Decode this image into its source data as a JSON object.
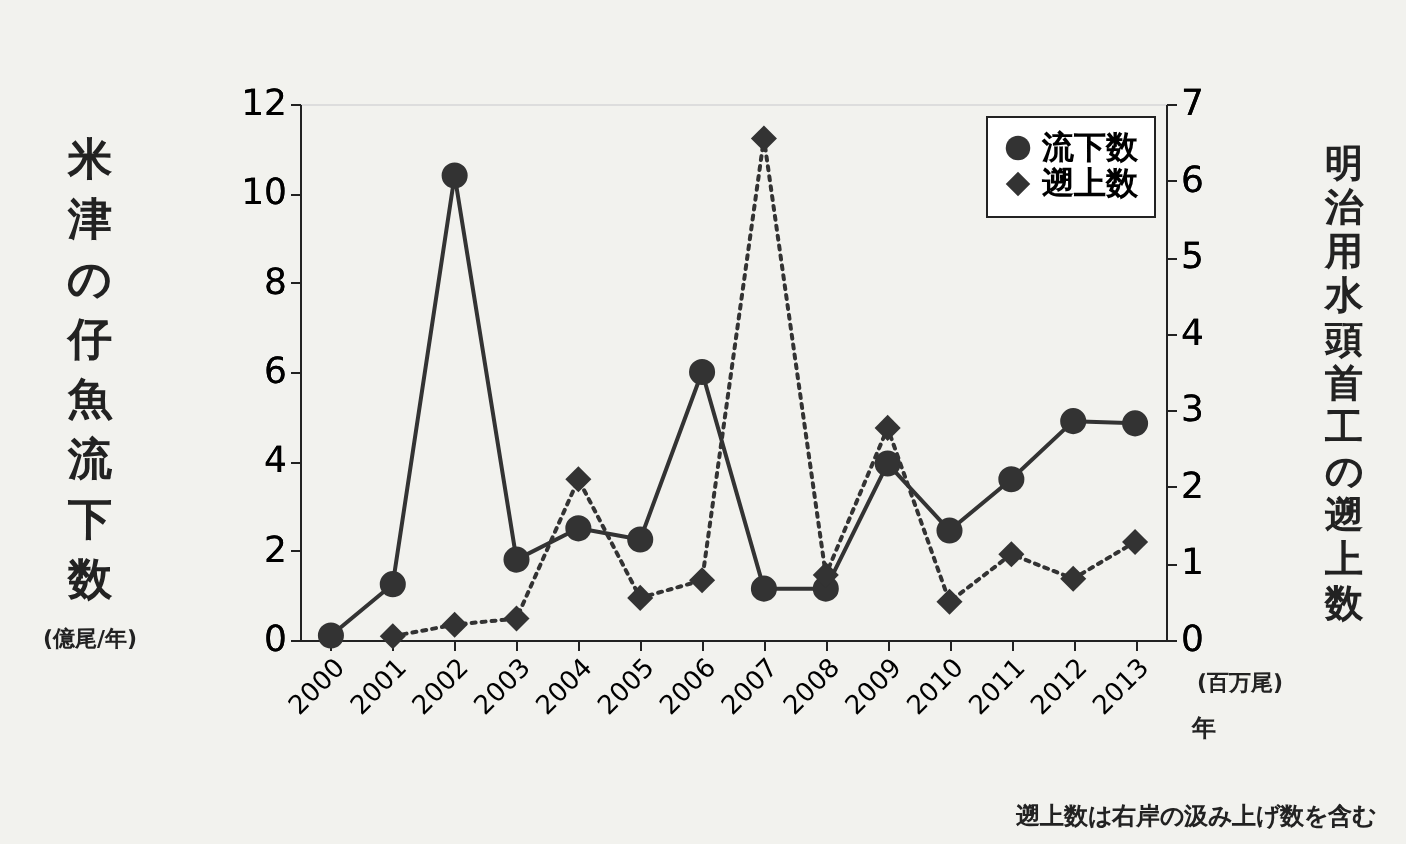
{
  "chart_data": {
    "type": "line",
    "categories": [
      "2000",
      "2001",
      "2002",
      "2003",
      "2004",
      "2005",
      "2006",
      "2007",
      "2008",
      "2009",
      "2010",
      "2011",
      "2012",
      "2013"
    ],
    "series": [
      {
        "name": "流下数",
        "color": "#333333",
        "marker": "circle",
        "line_style": "solid",
        "axis": "y",
        "values": [
          0.1,
          1.25,
          10.4,
          1.8,
          2.5,
          2.25,
          6.0,
          1.15,
          1.15,
          3.95,
          2.45,
          3.6,
          4.9,
          4.85
        ]
      },
      {
        "name": "遡上数",
        "color": "#333333",
        "marker": "diamond",
        "line_style": "dotted",
        "axis": "y2",
        "values": [
          null,
          0.05,
          0.2,
          0.28,
          2.1,
          0.55,
          0.78,
          6.55,
          0.85,
          2.77,
          0.5,
          1.12,
          0.8,
          1.28
        ]
      }
    ],
    "xlabel": "年",
    "ylabel": "米津の仔魚流下数\n(億尾/年)",
    "y2label": "明治用水頭首工の遡上数\n(百万尾)",
    "ylim": [
      0,
      12
    ],
    "yticks": [
      0,
      2,
      4,
      6,
      8,
      10,
      12
    ],
    "y2lim": [
      0,
      7
    ],
    "y2ticks": [
      0,
      1,
      2,
      3,
      4,
      5,
      6,
      7
    ],
    "grid": false,
    "legend": "top right",
    "annotations": [
      "遡上数は右岸の汲み上げ数を含む"
    ]
  }
}
